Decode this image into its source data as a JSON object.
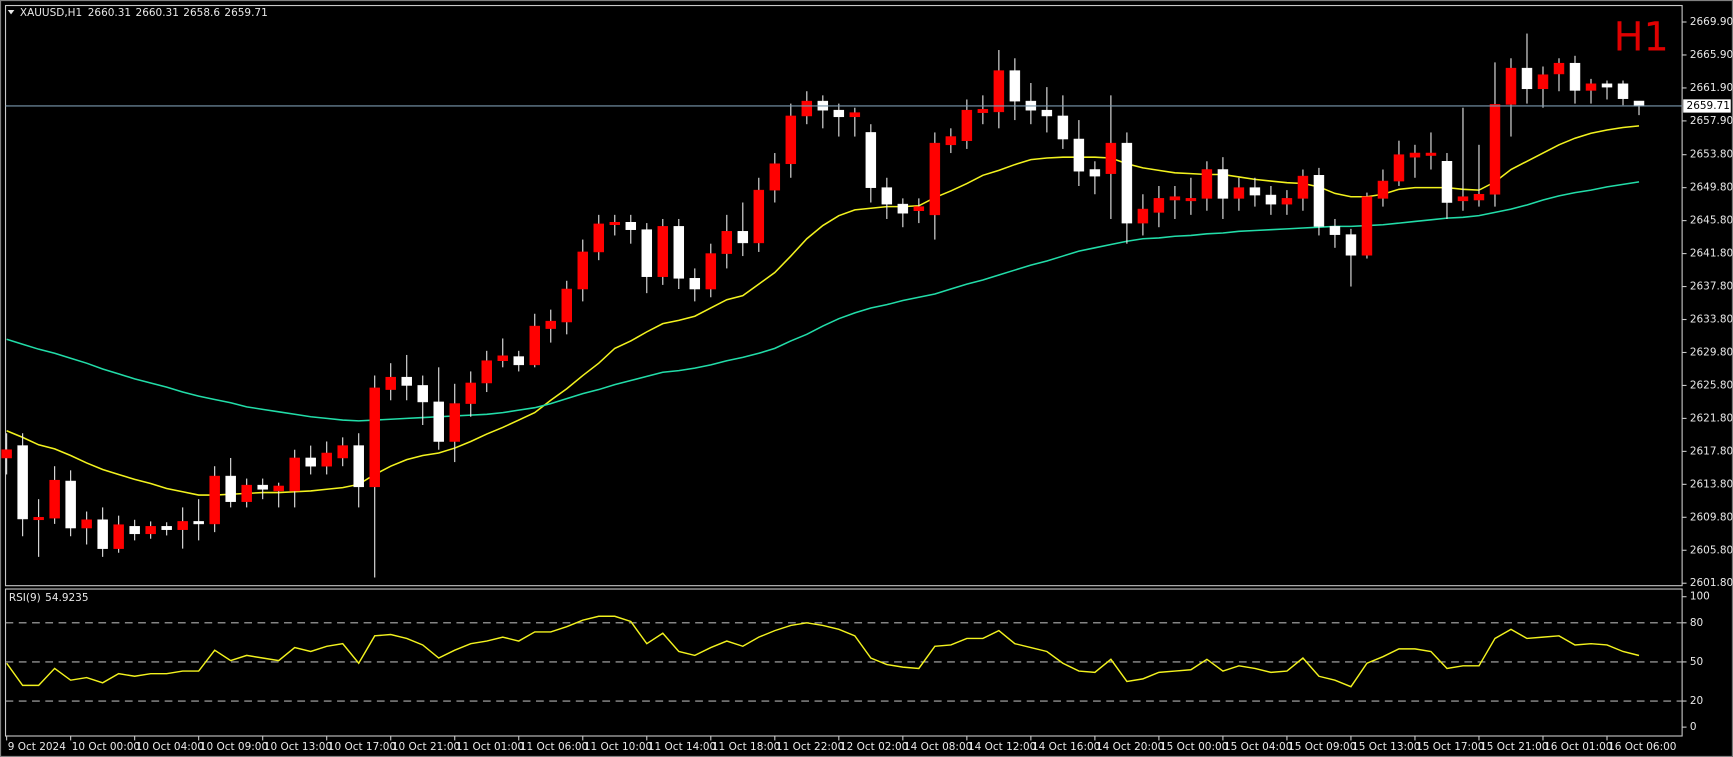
{
  "chart_data": {
    "type": "candlestick",
    "title": "XAUUSD,H1",
    "timeframe": "H1",
    "up_color": "#ff0000",
    "down_color": "#ffffff",
    "wick_color": "#e8e8e8",
    "price_line_color": "#7a98ae",
    "ylim": [
      2601.5,
      2671.9
    ],
    "yticks": [
      {
        "value": 2669.9,
        "label": "2669.90"
      },
      {
        "value": 2665.9,
        "label": "2665.90"
      },
      {
        "value": 2661.9,
        "label": "2661.90"
      },
      {
        "value": 2657.9,
        "label": "2657.90"
      },
      {
        "value": 2653.8,
        "label": "2653.80"
      },
      {
        "value": 2649.8,
        "label": "2649.80"
      },
      {
        "value": 2645.8,
        "label": "2645.80"
      },
      {
        "value": 2641.8,
        "label": "2641.80"
      },
      {
        "value": 2637.8,
        "label": "2637.80"
      },
      {
        "value": 2633.8,
        "label": "2633.80"
      },
      {
        "value": 2629.8,
        "label": "2629.80"
      },
      {
        "value": 2625.8,
        "label": "2625.80"
      },
      {
        "value": 2621.8,
        "label": "2621.80"
      },
      {
        "value": 2617.8,
        "label": "2617.80"
      },
      {
        "value": 2613.8,
        "label": "2613.80"
      },
      {
        "value": 2609.8,
        "label": "2609.80"
      },
      {
        "value": 2605.8,
        "label": "2605.80"
      },
      {
        "value": 2601.8,
        "label": "2601.80"
      }
    ],
    "categories": [
      "9 Oct 2024",
      null,
      null,
      null,
      "10 Oct 00:00",
      null,
      null,
      null,
      "10 Oct 04:00",
      null,
      null,
      null,
      "10 Oct 09:00",
      null,
      null,
      null,
      "10 Oct 13:00",
      null,
      null,
      null,
      "10 Oct 17:00",
      null,
      null,
      null,
      "10 Oct 21:00",
      null,
      null,
      null,
      "11 Oct 01:00",
      null,
      null,
      null,
      "11 Oct 06:00",
      null,
      null,
      null,
      "11 Oct 10:00",
      null,
      null,
      null,
      "11 Oct 14:00",
      null,
      null,
      null,
      "11 Oct 18:00",
      null,
      null,
      null,
      "11 Oct 22:00",
      null,
      null,
      null,
      "12 Oct 02:00",
      null,
      null,
      null,
      "14 Oct 08:00",
      null,
      null,
      null,
      "14 Oct 12:00",
      null,
      null,
      null,
      "14 Oct 16:00",
      null,
      null,
      null,
      "14 Oct 20:00",
      null,
      null,
      null,
      "15 Oct 00:00",
      null,
      null,
      null,
      "15 Oct 04:00",
      null,
      null,
      null,
      "15 Oct 09:00",
      null,
      null,
      null,
      "15 Oct 13:00",
      null,
      null,
      null,
      "15 Oct 17:00",
      null,
      null,
      null,
      "15 Oct 21:00",
      null,
      null,
      null,
      "16 Oct 01:00",
      null,
      null,
      null,
      "16 Oct 06:00",
      null,
      null
    ],
    "open": [
      2617,
      2618.5,
      2609.5,
      2609.7,
      2614.2,
      2608.5,
      2609.5,
      2606,
      2608.7,
      2607.8,
      2608.7,
      2608.3,
      2609.3,
      2609,
      2614.8,
      2611.7,
      2613.7,
      2613,
      2613,
      2617,
      2616,
      2617,
      2618.5,
      2613.5,
      2625.3,
      2626.8,
      2625.8,
      2623.8,
      2619,
      2623.6,
      2626.1,
      2628.8,
      2629.3,
      2628.3,
      2632.7,
      2633.5,
      2637.5,
      2642,
      2645.3,
      2645.6,
      2644.7,
      2639,
      2645.1,
      2638.8,
      2637.5,
      2641.8,
      2644.5,
      2643.1,
      2649.5,
      2652.7,
      2658.5,
      2660.3,
      2659.2,
      2658.4,
      2656.5,
      2649.8,
      2647.8,
      2647,
      2646.5,
      2655,
      2655.5,
      2658.9,
      2659,
      2664,
      2660.3,
      2659.2,
      2658.5,
      2655.7,
      2652,
      2651.5,
      2655.2,
      2645.5,
      2646.8,
      2648.3,
      2648.2,
      2648.5,
      2652,
      2648.5,
      2649.8,
      2648.9,
      2647.8,
      2648.5,
      2651.3,
      2645.1,
      2644.1,
      2641.6,
      2648.5,
      2650.6,
      2653.5,
      2653.7,
      2653,
      2648.2,
      2648.3,
      2649,
      2659.9,
      2664.3,
      2661.8,
      2663.6,
      2664.9,
      2661.6,
      2662.4,
      2662.4,
      2660.31
    ],
    "high": [
      2620,
      2620,
      2612,
      2616,
      2615.5,
      2610.5,
      2611,
      2610,
      2609.5,
      2609.3,
      2609.2,
      2611,
      2612,
      2616,
      2617,
      2614.5,
      2614.5,
      2614,
      2618,
      2618.5,
      2619,
      2619.5,
      2620,
      2627,
      2628.5,
      2629.5,
      2627,
      2628,
      2626,
      2627.5,
      2630,
      2631.5,
      2630,
      2634.5,
      2635,
      2638.5,
      2643.5,
      2646.5,
      2646.5,
      2646.5,
      2645.5,
      2646,
      2646,
      2640,
      2643,
      2646.5,
      2648,
      2651,
      2654,
      2660,
      2661.5,
      2661,
      2660,
      2659.5,
      2657.5,
      2651,
      2648.5,
      2648.5,
      2656.5,
      2657,
      2660.5,
      2661,
      2666.5,
      2665.5,
      2662.5,
      2662,
      2661,
      2658,
      2653,
      2661,
      2656.5,
      2649,
      2650,
      2650,
      2651,
      2653,
      2653.5,
      2651,
      2651,
      2650,
      2649.5,
      2652,
      2652.2,
      2646,
      2644.8,
      2649.2,
      2652,
      2655.5,
      2655,
      2656.5,
      2654,
      2659.5,
      2655,
      2665,
      2665.5,
      2668.5,
      2664.5,
      2665.5,
      2665.8,
      2663,
      2662.8,
      2662.8,
      2660.31
    ],
    "low": [
      2615,
      2607.5,
      2605,
      2609,
      2607.5,
      2606.5,
      2605,
      2605.5,
      2607,
      2607.2,
      2607.6,
      2606,
      2607,
      2608,
      2611,
      2611,
      2612,
      2611,
      2611,
      2615,
      2615,
      2616,
      2611,
      2602.5,
      2624,
      2624,
      2621,
      2618,
      2616.5,
      2622,
      2625,
      2628,
      2627.5,
      2628,
      2631,
      2632,
      2636,
      2641,
      2644,
      2643,
      2637,
      2638,
      2637.5,
      2636,
      2636.5,
      2640,
      2641.5,
      2642,
      2648,
      2651,
      2657.5,
      2657,
      2656,
      2656,
      2648,
      2646,
      2645,
      2645.5,
      2643.5,
      2654,
      2654.5,
      2657.5,
      2657,
      2658,
      2657.5,
      2656.5,
      2654.5,
      2650,
      2649,
      2646,
      2643,
      2644,
      2645,
      2646,
      2646.5,
      2647,
      2646,
      2647,
      2647.5,
      2646.5,
      2646.5,
      2647,
      2644,
      2642.5,
      2637.8,
      2641.2,
      2647.5,
      2650,
      2651,
      2652,
      2646,
      2647,
      2647.5,
      2647.5,
      2656,
      2660,
      2659.5,
      2661.5,
      2660,
      2660,
      2660.5,
      2659.8,
      2658.6
    ],
    "close": [
      2618,
      2609.6,
      2609.8,
      2614.3,
      2608.5,
      2609.5,
      2606,
      2608.9,
      2607.8,
      2608.7,
      2608.3,
      2609.3,
      2609,
      2614.8,
      2611.7,
      2613.7,
      2613.2,
      2613.6,
      2617,
      2616,
      2617.6,
      2618.5,
      2613.5,
      2625.5,
      2626.8,
      2625.8,
      2623.8,
      2619,
      2623.6,
      2626.1,
      2628.8,
      2629.4,
      2628.3,
      2633,
      2633.6,
      2637.5,
      2642,
      2645.4,
      2645.6,
      2644.7,
      2639,
      2645.1,
      2638.8,
      2637.5,
      2641.8,
      2644.5,
      2643.1,
      2649.5,
      2652.7,
      2658.5,
      2660.3,
      2659.2,
      2658.4,
      2658.9,
      2649.8,
      2647.8,
      2646.7,
      2647.5,
      2655.2,
      2656,
      2659.2,
      2659.3,
      2664,
      2660.3,
      2659.2,
      2658.5,
      2655.7,
      2651.8,
      2651.2,
      2655.2,
      2645.5,
      2647.2,
      2648.5,
      2648.7,
      2648.5,
      2652,
      2648.5,
      2649.8,
      2648.9,
      2647.8,
      2648.5,
      2651.2,
      2645.1,
      2644.1,
      2641.6,
      2648.7,
      2650.6,
      2653.8,
      2654,
      2654,
      2648,
      2648.7,
      2649,
      2659.9,
      2664.3,
      2661.8,
      2663.5,
      2664.9,
      2661.6,
      2662.4,
      2662,
      2660.6,
      2659.71
    ],
    "overlays": [
      {
        "color": "#f2f21e",
        "values": [
          2620.3,
          2619.5,
          2618.6,
          2618.1,
          2617.3,
          2616.4,
          2615.6,
          2615,
          2614.4,
          2613.9,
          2613.3,
          2612.9,
          2612.5,
          2612.5,
          2612.6,
          2612.7,
          2612.8,
          2612.8,
          2612.9,
          2613,
          2613.2,
          2613.4,
          2613.8,
          2615,
          2616,
          2616.8,
          2617.3,
          2617.6,
          2618.2,
          2619,
          2619.9,
          2620.7,
          2621.6,
          2622.5,
          2624,
          2625.4,
          2627,
          2628.5,
          2630.3,
          2631.2,
          2632.3,
          2633.3,
          2633.7,
          2634.2,
          2635.2,
          2636.2,
          2636.7,
          2638.1,
          2639.5,
          2641.5,
          2643.6,
          2645.2,
          2646.4,
          2647.1,
          2647.3,
          2647.5,
          2647.5,
          2647.6,
          2648.6,
          2649.4,
          2650.3,
          2651.3,
          2651.9,
          2652.6,
          2653.2,
          2653.4,
          2653.5,
          2653.5,
          2653.5,
          2653.4,
          2652.7,
          2652.2,
          2651.9,
          2651.6,
          2651.5,
          2651.4,
          2651.4,
          2651.1,
          2650.8,
          2650.6,
          2650.4,
          2650.3,
          2649.9,
          2649.1,
          2648.7,
          2648.7,
          2649,
          2649.6,
          2649.8,
          2649.8,
          2649.8,
          2649.6,
          2649.5,
          2650.5,
          2652,
          2653,
          2654,
          2655,
          2655.8,
          2656.4,
          2656.8,
          2657.1,
          2657.3
        ]
      },
      {
        "color": "#22dca8",
        "values": [
          2631.4,
          2630.8,
          2630.2,
          2629.7,
          2629.1,
          2628.5,
          2627.8,
          2627.2,
          2626.6,
          2626.1,
          2625.6,
          2625,
          2624.5,
          2624.1,
          2623.7,
          2623.2,
          2622.9,
          2622.6,
          2622.3,
          2622,
          2621.8,
          2621.6,
          2621.5,
          2621.6,
          2621.7,
          2621.8,
          2621.9,
          2622,
          2622.1,
          2622.2,
          2622.3,
          2622.5,
          2622.8,
          2623.1,
          2623.6,
          2624.2,
          2624.8,
          2625.3,
          2625.9,
          2626.4,
          2626.9,
          2627.4,
          2627.6,
          2627.9,
          2628.3,
          2628.8,
          2629.2,
          2629.7,
          2630.3,
          2631.2,
          2632,
          2633,
          2633.9,
          2634.6,
          2635.2,
          2635.6,
          2636.1,
          2636.5,
          2636.9,
          2637.5,
          2638.1,
          2638.6,
          2639.2,
          2639.8,
          2640.4,
          2640.9,
          2641.5,
          2642.1,
          2642.5,
          2642.9,
          2643.3,
          2643.6,
          2643.7,
          2643.9,
          2644,
          2644.2,
          2644.3,
          2644.5,
          2644.6,
          2644.7,
          2644.8,
          2644.9,
          2645,
          2645.1,
          2645.1,
          2645.2,
          2645.3,
          2645.5,
          2645.7,
          2645.9,
          2646.1,
          2646.2,
          2646.4,
          2646.8,
          2647.2,
          2647.7,
          2648.3,
          2648.8,
          2649.2,
          2649.5,
          2649.9,
          2650.2,
          2650.5
        ]
      }
    ],
    "indicator": {
      "type": "line",
      "name": "RSI(9)",
      "color": "#f2f21e",
      "ylim": [
        -6.8,
        105.9
      ],
      "yticks": [
        100,
        80,
        50,
        20,
        0
      ],
      "levels": [
        20,
        50,
        80
      ],
      "values": [
        49,
        32,
        32,
        45,
        36,
        38,
        34,
        41,
        39,
        41,
        41,
        43,
        43,
        59,
        51,
        55,
        53,
        51,
        61,
        58,
        62,
        64,
        49,
        70,
        71,
        68,
        63,
        53,
        59,
        64,
        66,
        69,
        66,
        73,
        73,
        77,
        82,
        85,
        85,
        81,
        64,
        72,
        58,
        55,
        61,
        66,
        62,
        69,
        74,
        78,
        80,
        78,
        75,
        70,
        53,
        48,
        46,
        45,
        62,
        63,
        68,
        68,
        74,
        64,
        61,
        58,
        49,
        43,
        42,
        52,
        35,
        37,
        42,
        43,
        44,
        52,
        43,
        47,
        45,
        42,
        43,
        53,
        39,
        36,
        31,
        49,
        54,
        60,
        60,
        58,
        45,
        47,
        47,
        68,
        75,
        68,
        69,
        70,
        63,
        64,
        63,
        58,
        54.9235
      ]
    }
  }
}
